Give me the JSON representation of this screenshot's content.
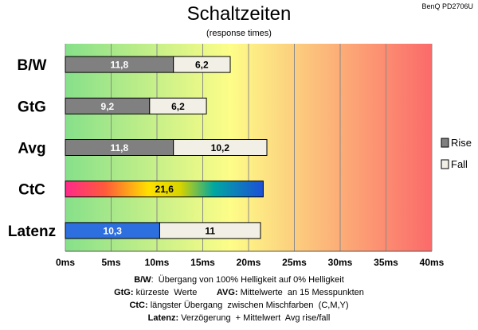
{
  "title": "Schaltzeiten",
  "subtitle": "(response times)",
  "model": "BenQ PD2706U",
  "colors": {
    "rise": "#808080",
    "fall": "#f2f0e6",
    "latency_rise": "#2e6fe0",
    "bg_start": "#86e08a",
    "bg_mid": "#fdfd88",
    "bg_end": "#fb6a6a",
    "grid": "#8a8a8a"
  },
  "chart_data": {
    "type": "bar",
    "orientation": "horizontal",
    "stacked": true,
    "categories": [
      "B/W",
      "GtG",
      "Avg",
      "CtC",
      "Latenz"
    ],
    "series": [
      {
        "name": "Rise",
        "values": [
          11.8,
          9.2,
          11.8,
          21.6,
          10.3
        ]
      },
      {
        "name": "Fall",
        "values": [
          6.2,
          6.2,
          10.2,
          null,
          11
        ]
      }
    ],
    "xlim": [
      0,
      40
    ],
    "x_ticks": [
      0,
      5,
      10,
      15,
      20,
      25,
      30,
      35,
      40
    ],
    "x_tick_labels": [
      "0ms",
      "5ms",
      "10ms",
      "15ms",
      "20ms",
      "25ms",
      "30ms",
      "35ms",
      "40ms"
    ],
    "data_labels": [
      [
        "11,8",
        "6,2"
      ],
      [
        "9,2",
        "6,2"
      ],
      [
        "11,8",
        "10,2"
      ],
      [
        "21,6"
      ],
      [
        "10,3",
        "11"
      ]
    ],
    "legend": {
      "position": "right",
      "entries": [
        "Rise",
        "Fall"
      ]
    },
    "grid": true
  },
  "footnotes": [
    {
      "parts": [
        {
          "b": "B/W"
        },
        {
          "t": ":  Übergang von 100% Helligkeit auf 0% Helligkeit"
        }
      ]
    },
    {
      "parts": [
        {
          "b": "GtG:"
        },
        {
          "t": " kürzeste  Werte        "
        },
        {
          "b": "AVG:"
        },
        {
          "t": " Mittelwerte  an 15 Messpunkten"
        }
      ]
    },
    {
      "parts": [
        {
          "b": "CtC:"
        },
        {
          "t": " längster Übergang  zwischen Mischfarben  (C,M,Y)"
        }
      ]
    },
    {
      "parts": [
        {
          "b": "Latenz:"
        },
        {
          "t": " Verzögerung  + Mittelwert  Avg rise/fall"
        }
      ]
    }
  ]
}
